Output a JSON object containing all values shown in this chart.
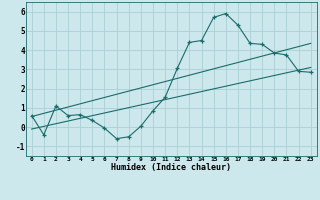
{
  "xlabel": "Humidex (Indice chaleur)",
  "ylabel": "",
  "background_color": "#cce8ec",
  "grid_color": "#aacfd4",
  "line_color": "#1a6b6b",
  "xlim": [
    -0.5,
    23.5
  ],
  "ylim": [
    -1.5,
    6.5
  ],
  "xticks": [
    0,
    1,
    2,
    3,
    4,
    5,
    6,
    7,
    8,
    9,
    10,
    11,
    12,
    13,
    14,
    15,
    16,
    17,
    18,
    19,
    20,
    21,
    22,
    23
  ],
  "yticks": [
    -1,
    0,
    1,
    2,
    3,
    4,
    5,
    6
  ],
  "curve1_x": [
    0,
    1,
    2,
    3,
    4,
    5,
    6,
    7,
    8,
    9,
    10,
    11,
    12,
    13,
    14,
    15,
    16,
    17,
    18,
    19,
    20,
    21,
    22,
    23
  ],
  "curve1_y": [
    0.6,
    -0.4,
    1.1,
    0.6,
    0.65,
    0.35,
    -0.05,
    -0.6,
    -0.5,
    0.05,
    0.85,
    1.55,
    3.05,
    4.4,
    4.5,
    5.7,
    5.9,
    5.3,
    4.35,
    4.3,
    3.85,
    3.75,
    2.9,
    2.85
  ],
  "line1_x": [
    0,
    23
  ],
  "line1_y": [
    -0.1,
    3.1
  ],
  "line2_x": [
    0,
    23
  ],
  "line2_y": [
    0.55,
    4.35
  ]
}
